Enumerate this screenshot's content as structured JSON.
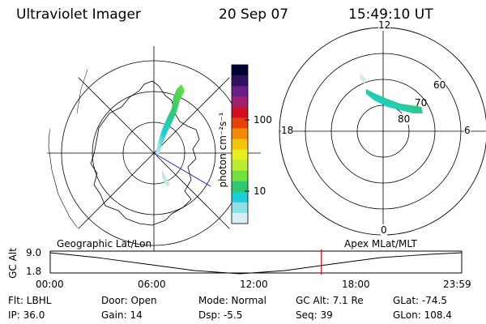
{
  "header": {
    "instrument": "Ultraviolet Imager",
    "date": "20 Sep 07",
    "time": "15:49:10 UT"
  },
  "colorbar": {
    "unit_label": "photon cm⁻²s⁻¹",
    "ticks": [
      "100",
      "10"
    ],
    "colors": [
      "#000033",
      "#301060",
      "#6a1e8c",
      "#a0206e",
      "#d0101e",
      "#e8400a",
      "#f08a08",
      "#f2c40c",
      "#e8ee20",
      "#b8ee30",
      "#6fe03c",
      "#30c870",
      "#1ad0d8",
      "#8ce0e8",
      "#d8eef0"
    ]
  },
  "polar_plot": {
    "mlt_labels": {
      "top": "12",
      "left": "18",
      "right": "6",
      "bottom": "0"
    },
    "lat_labels": [
      "60",
      "70",
      "80"
    ]
  },
  "timeline": {
    "left_label": "Geographic Lat/Lon",
    "right_label": "Apex MLat/MLT",
    "y_axis_title": "GC Alt",
    "y_max": "9.0",
    "y_min": "1.8",
    "time_ticks": [
      "00:00",
      "06:00",
      "12:00",
      "18:00",
      "23:59"
    ],
    "current_time_fraction": 0.659,
    "marker_color": "#dd0000"
  },
  "info": {
    "flt": "Flt: LBHL",
    "ip": "IP: 36.0",
    "door": "Door: Open",
    "gain": "Gain: 14",
    "mode": "Mode: Normal",
    "dsp": "Dsp:    -5.5",
    "gc_alt": "GC Alt: 7.1 Re",
    "seq": "Seq: 39",
    "glat": "GLat: -74.5",
    "glon": "GLon: 108.4"
  }
}
